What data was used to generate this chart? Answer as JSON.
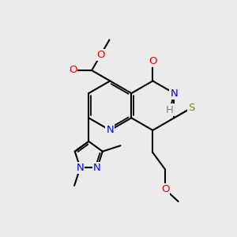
{
  "bg": "#ebebeb",
  "bond_lw": 1.5,
  "atom_colors": {
    "N": "#0000ee",
    "O": "#ee0000",
    "S": "#888800",
    "H": "#708090",
    "C": "#000000"
  },
  "font_size": 9.5
}
